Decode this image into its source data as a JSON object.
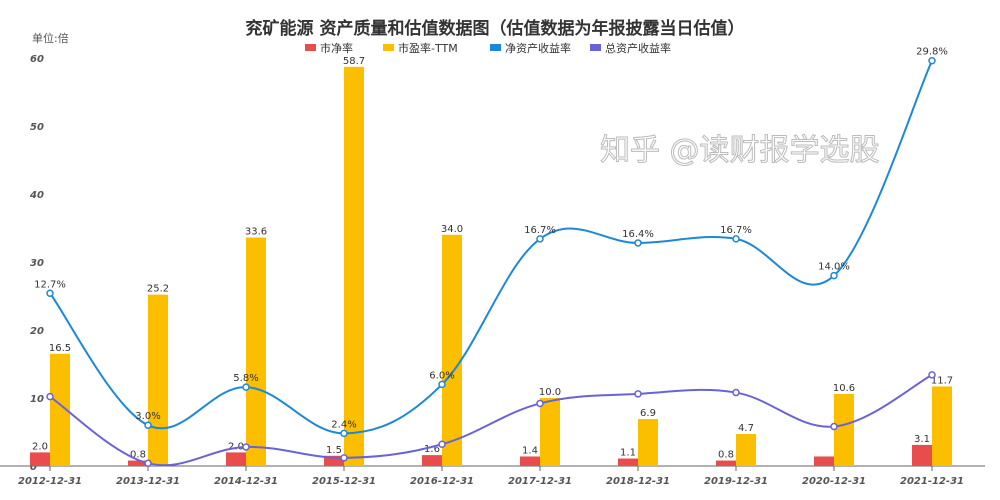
{
  "chart_data": {
    "type": "bar+line",
    "title": "兖矿能源 资产质量和估值数据图（估值数据为年报披露当日估值）",
    "unit_label": "单位:倍",
    "categories": [
      "2012-12-31",
      "2013-12-31",
      "2014-12-31",
      "2015-12-31",
      "2016-12-31",
      "2017-12-31",
      "2018-12-31",
      "2019-12-31",
      "2020-12-31",
      "2021-12-31"
    ],
    "yticks": [
      0,
      10,
      20,
      30,
      40,
      50,
      60
    ],
    "ylim": [
      0,
      60
    ],
    "y2lim": [
      0,
      30
    ],
    "legend_position": "top",
    "grid": false,
    "series": [
      {
        "name": "市净率",
        "type": "bar",
        "color": "#e84c4c",
        "values": [
          2.0,
          0.8,
          2.0,
          1.5,
          1.6,
          1.4,
          1.1,
          0.8,
          1.4,
          3.1
        ],
        "labels": [
          "2.0",
          "0.8",
          "2.0",
          "1.5",
          "1.6",
          "1.4",
          "1.1",
          "0.8",
          "",
          "3.1"
        ]
      },
      {
        "name": "市盈率-TTM",
        "type": "bar",
        "color": "#fbbf00",
        "values": [
          16.5,
          25.2,
          33.6,
          58.7,
          34.0,
          10.0,
          6.9,
          4.7,
          10.6,
          11.7
        ],
        "labels": [
          "16.5",
          "25.2",
          "33.6",
          "58.7",
          "34.0",
          "10.0",
          "6.9",
          "4.7",
          "10.6",
          "11.7"
        ]
      },
      {
        "name": "净资产收益率",
        "type": "line",
        "axis": "right",
        "color": "#1e88d8",
        "values": [
          12.7,
          3.0,
          5.8,
          2.4,
          6.0,
          16.7,
          16.4,
          16.7,
          14.0,
          29.8
        ],
        "labels": [
          "12.7%",
          "3.0%",
          "5.8%",
          "2.4%",
          "6.0%",
          "16.7%",
          "16.4%",
          "16.7%",
          "14.0%",
          "29.8%"
        ]
      },
      {
        "name": "总资产收益率",
        "type": "line",
        "axis": "right",
        "color": "#6a62d8",
        "values": [
          5.1,
          0.2,
          1.4,
          0.6,
          1.6,
          4.6,
          5.3,
          5.4,
          2.9,
          6.7
        ]
      }
    ]
  },
  "watermark": "知乎 @读财报学选股"
}
